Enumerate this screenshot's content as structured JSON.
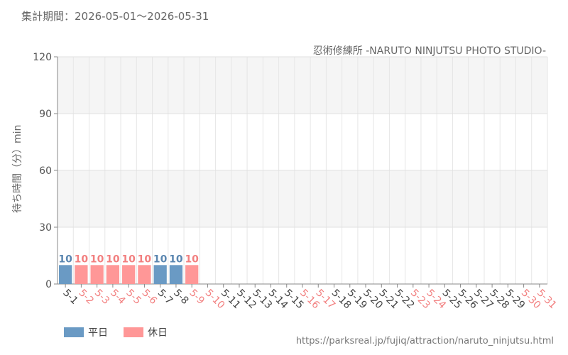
{
  "header": {
    "period": "集計期間：2026-05-01～2026-05-31",
    "attraction": "忍術修練所 -NARUTO NINJUTSU PHOTO STUDIO-"
  },
  "footer": {
    "source_url": "https://parksreal.jp/fujiq/attraction/naruto_ninjutsu.html"
  },
  "legend": {
    "weekday_label": "平日",
    "holiday_label": "休日"
  },
  "colors": {
    "weekday": "#6a9ac4",
    "holiday": "#ff9797",
    "weekday_text": "#5a86b0",
    "holiday_text": "#f27f7f",
    "grid_band": "#f5f5f5"
  },
  "chart_data": {
    "type": "bar",
    "ylabel": "待ち時間（分）min",
    "ylim": [
      0,
      120
    ],
    "yticks": [
      0,
      30,
      60,
      90,
      120
    ],
    "categories": [
      "5-1",
      "5-2",
      "5-3",
      "5-4",
      "5-5",
      "5-6",
      "5-7",
      "5-8",
      "5-9",
      "5-10",
      "5-11",
      "5-12",
      "5-13",
      "5-14",
      "5-15",
      "5-16",
      "5-17",
      "5-18",
      "5-19",
      "5-20",
      "5-21",
      "5-22",
      "5-23",
      "5-24",
      "5-25",
      "5-26",
      "5-27",
      "5-28",
      "5-29",
      "5-30",
      "5-31"
    ],
    "day_type": [
      "weekday",
      "holiday",
      "holiday",
      "holiday",
      "holiday",
      "holiday",
      "weekday",
      "weekday",
      "holiday",
      "holiday",
      "weekday",
      "weekday",
      "weekday",
      "weekday",
      "weekday",
      "holiday",
      "holiday",
      "weekday",
      "weekday",
      "weekday",
      "weekday",
      "weekday",
      "holiday",
      "holiday",
      "weekday",
      "weekday",
      "weekday",
      "weekday",
      "weekday",
      "holiday",
      "holiday"
    ],
    "values": [
      10,
      10,
      10,
      10,
      10,
      10,
      10,
      10,
      10,
      null,
      null,
      null,
      null,
      null,
      null,
      null,
      null,
      null,
      null,
      null,
      null,
      null,
      null,
      null,
      null,
      null,
      null,
      null,
      null,
      null,
      null
    ],
    "grid": true,
    "legend_position": "bottom-left"
  }
}
